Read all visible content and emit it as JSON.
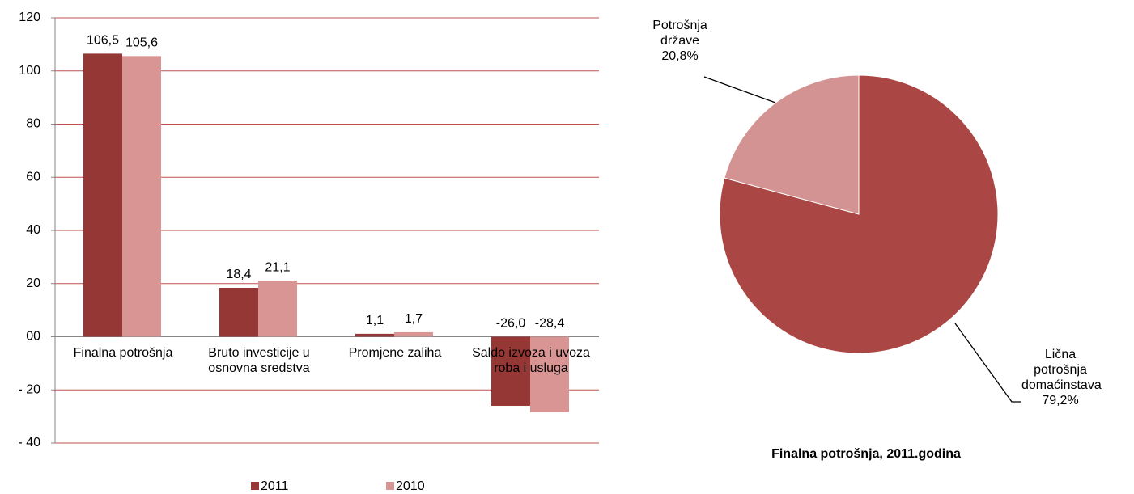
{
  "chart_data": [
    {
      "type": "bar",
      "categories": [
        "Finalna potrošnja",
        "Bruto investicije u osnovna sredstva",
        "Promjene zaliha",
        "Saldo izvoza i uvoza roba i usluga"
      ],
      "series": [
        {
          "name": "2011",
          "color": "#953735",
          "values": [
            106.5,
            18.4,
            1.1,
            -26.0
          ],
          "value_labels": [
            "106,5",
            "18,4",
            "1,1",
            "-26,0"
          ]
        },
        {
          "name": "2010",
          "color": "#d99594",
          "values": [
            105.6,
            21.1,
            1.7,
            -28.4
          ],
          "value_labels": [
            "105,6",
            "21,1",
            "1,7",
            "-28,4"
          ]
        }
      ],
      "ylim": [
        -40,
        120
      ],
      "yticks": [
        {
          "value": -40,
          "label": "- 40"
        },
        {
          "value": -20,
          "label": "- 20"
        },
        {
          "value": 0,
          "label": "00"
        },
        20,
        40,
        60,
        80,
        100,
        120
      ],
      "grid": true,
      "legend": "bottom"
    },
    {
      "type": "pie",
      "title": "Finalna potrošnja, 2011.godina",
      "categories": [
        "Lična potrošnja domaćinstava",
        "Potrošnja države"
      ],
      "values": [
        79.2,
        20.8
      ],
      "value_labels": [
        "79,2%",
        "20,8%"
      ],
      "colors": [
        "#aa4744",
        "#d39392"
      ]
    }
  ]
}
